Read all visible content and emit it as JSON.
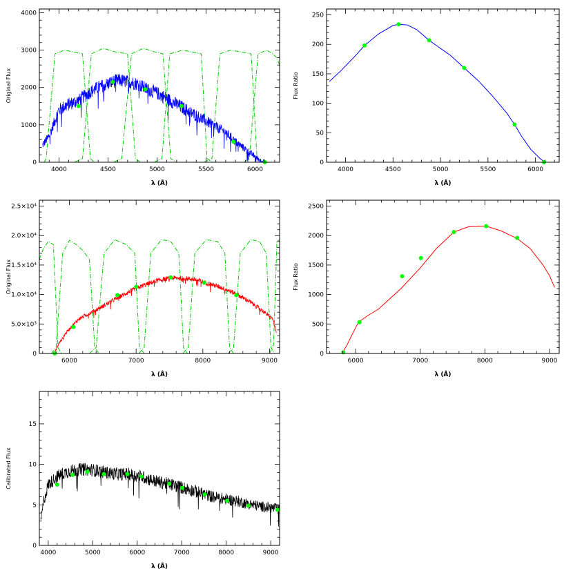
{
  "chart_data": [
    {
      "type": "line",
      "panel": "top-left",
      "xlabel": "λ (Å)",
      "ylabel": "Original Flux",
      "xlim": [
        3800,
        6250
      ],
      "ylim": [
        0,
        4100
      ],
      "xticks": [
        4000,
        4500,
        5000,
        5500,
        6000
      ],
      "yticks": [
        0,
        1000,
        2000,
        3000,
        4000
      ],
      "ytick_labels": [
        "0",
        "1000",
        "2000",
        "3000",
        "4000"
      ],
      "colors": {
        "spectrum": "#0000ff",
        "filters": "#00cc00",
        "points": "#00ff00"
      },
      "spectrum": {
        "x": [
          3830,
          3900,
          4000,
          4100,
          4200,
          4300,
          4400,
          4500,
          4600,
          4700,
          4800,
          4900,
          5000,
          5100,
          5200,
          5300,
          5400,
          5500,
          5600,
          5700,
          5800,
          5900,
          6000,
          6050,
          6100
        ],
        "y": [
          450,
          700,
          1400,
          1550,
          1650,
          1850,
          2000,
          2100,
          2200,
          2150,
          2100,
          1950,
          1850,
          1700,
          1550,
          1400,
          1250,
          1100,
          950,
          800,
          550,
          350,
          150,
          50,
          0
        ],
        "noise": 180
      },
      "filters": [
        {
          "x": [
            3850,
            3870,
            3960,
            4060,
            4150,
            4240,
            4320,
            4360
          ],
          "y": [
            0,
            100,
            2900,
            3000,
            2950,
            2900,
            100,
            0
          ]
        },
        {
          "x": [
            4160,
            4240,
            4330,
            4450,
            4580,
            4700,
            4780,
            4830
          ],
          "y": [
            0,
            100,
            2900,
            3050,
            2950,
            2900,
            100,
            0
          ]
        },
        {
          "x": [
            4560,
            4640,
            4740,
            4860,
            4980,
            5060,
            5140,
            5200
          ],
          "y": [
            0,
            100,
            2900,
            3050,
            2950,
            2900,
            100,
            0
          ]
        },
        {
          "x": [
            4970,
            5050,
            5130,
            5260,
            5360,
            5450,
            5510,
            5560
          ],
          "y": [
            0,
            100,
            2900,
            3000,
            2950,
            2900,
            100,
            0
          ]
        },
        {
          "x": [
            5480,
            5560,
            5640,
            5750,
            5860,
            5960,
            6020,
            6080
          ],
          "y": [
            0,
            100,
            2900,
            3000,
            2950,
            2900,
            100,
            0
          ]
        },
        {
          "x": [
            5890,
            5940,
            6030,
            6120,
            6180,
            6220,
            6250
          ],
          "y": [
            0,
            100,
            2900,
            3000,
            2900,
            2800,
            2600
          ]
        }
      ],
      "points": {
        "x": [
          4200,
          4550,
          4880,
          5250,
          5780,
          6100
        ],
        "y": [
          1500,
          2150,
          1950,
          1500,
          550,
          0
        ]
      }
    },
    {
      "type": "line",
      "panel": "top-right",
      "xlabel": "λ (Å)",
      "ylabel": "Flux Ratio",
      "xlim": [
        3800,
        6250
      ],
      "ylim": [
        0,
        260
      ],
      "xticks": [
        4000,
        4500,
        5000,
        5500,
        6000
      ],
      "yticks": [
        0,
        50,
        100,
        150,
        200,
        250
      ],
      "ytick_labels": [
        "0",
        "50",
        "100",
        "150",
        "200",
        "250"
      ],
      "colors": {
        "curve": "#0000ff",
        "points": "#00ff00"
      },
      "curve": {
        "x": [
          3830,
          3950,
          4100,
          4200,
          4350,
          4500,
          4560,
          4650,
          4750,
          4880,
          5000,
          5100,
          5250,
          5400,
          5550,
          5700,
          5780,
          5850,
          5950,
          6050,
          6100,
          6130
        ],
        "y": [
          137,
          155,
          180,
          198,
          218,
          232,
          234,
          233,
          225,
          207,
          193,
          182,
          160,
          138,
          112,
          83,
          64,
          45,
          22,
          6,
          0,
          0
        ]
      },
      "points": {
        "x": [
          4200,
          4560,
          4880,
          5250,
          5780,
          6090
        ],
        "y": [
          198,
          234,
          207,
          160,
          64,
          0
        ]
      }
    },
    {
      "type": "line",
      "panel": "middle-left",
      "xlabel": "λ (Å)",
      "ylabel": "Original Flux",
      "xlim": [
        5550,
        9150
      ],
      "ylim": [
        0,
        26000
      ],
      "xticks": [
        6000,
        7000,
        8000,
        9000
      ],
      "yticks": [
        0,
        5000,
        10000,
        15000,
        20000,
        25000
      ],
      "ytick_labels": [
        "0",
        "5.0×10³",
        "1.0×10⁴",
        "1.5×10⁴",
        "2.0×10⁴",
        "2.5×10⁴"
      ],
      "colors": {
        "spectrum": "#ff0000",
        "filters": "#00cc00",
        "points": "#00ff00"
      },
      "spectrum": {
        "x": [
          5770,
          5850,
          5950,
          6050,
          6150,
          6300,
          6500,
          6700,
          6900,
          7100,
          7300,
          7500,
          7700,
          7900,
          8100,
          8300,
          8500,
          8700,
          8900,
          9050,
          9100
        ],
        "y": [
          0,
          1800,
          3500,
          4800,
          5900,
          6800,
          8000,
          9300,
          10500,
          11500,
          12300,
          12800,
          12800,
          12500,
          11800,
          11100,
          10100,
          8800,
          7200,
          5800,
          3500
        ],
        "noise": 400
      },
      "filters": [
        {
          "x": [
            5550,
            5600,
            5680,
            5760,
            5830,
            5880
          ],
          "y": [
            16000,
            17500,
            19000,
            18500,
            1000,
            0
          ]
        },
        {
          "x": [
            5730,
            5800,
            5900,
            6000,
            6100,
            6200,
            6300,
            6380,
            6440
          ],
          "y": [
            0,
            1000,
            17000,
            19200,
            18500,
            17500,
            16000,
            1000,
            0
          ]
        },
        {
          "x": [
            6300,
            6400,
            6520,
            6680,
            6850,
            6980,
            7050,
            7120
          ],
          "y": [
            0,
            1000,
            17000,
            19300,
            18500,
            17000,
            1000,
            0
          ]
        },
        {
          "x": [
            7040,
            7120,
            7220,
            7380,
            7520,
            7640,
            7710,
            7770
          ],
          "y": [
            0,
            1000,
            17000,
            19300,
            19000,
            17000,
            1000,
            0
          ]
        },
        {
          "x": [
            7700,
            7780,
            7880,
            8050,
            8220,
            8330,
            8400,
            8460
          ],
          "y": [
            0,
            1000,
            17000,
            19300,
            19000,
            17000,
            1000,
            0
          ]
        },
        {
          "x": [
            8380,
            8460,
            8560,
            8720,
            8850,
            8950,
            9020,
            9080
          ],
          "y": [
            0,
            1000,
            17000,
            19300,
            19000,
            17000,
            1000,
            0
          ]
        },
        {
          "x": [
            9000,
            9060,
            9110,
            9150
          ],
          "y": [
            0,
            1500,
            19000,
            19300
          ]
        }
      ],
      "points": {
        "x": [
          5780,
          6060,
          6720,
          7000,
          7520,
          8020,
          8500
        ],
        "y": [
          0,
          4500,
          9900,
          11300,
          12900,
          12000,
          9900
        ]
      }
    },
    {
      "type": "line",
      "panel": "middle-right",
      "xlabel": "λ (Å)",
      "ylabel": "Flux Ratio",
      "xlim": [
        5550,
        9150
      ],
      "ylim": [
        0,
        2600
      ],
      "xticks": [
        6000,
        7000,
        8000,
        9000
      ],
      "yticks": [
        0,
        500,
        1000,
        1500,
        2000,
        2500
      ],
      "ytick_labels": [
        "0",
        "500",
        "1000",
        "1500",
        "2000",
        "2500"
      ],
      "colors": {
        "curve": "#ff0000",
        "points": "#00ff00"
      },
      "curve": {
        "x": [
          5800,
          5870,
          5950,
          6030,
          6080,
          6200,
          6350,
          6500,
          6700,
          7000,
          7250,
          7520,
          7750,
          8020,
          8250,
          8500,
          8700,
          8900,
          9000,
          9080
        ],
        "y": [
          20,
          150,
          330,
          500,
          560,
          650,
          750,
          900,
          1100,
          1450,
          1780,
          2060,
          2150,
          2160,
          2080,
          1950,
          1780,
          1500,
          1320,
          1120
        ]
      },
      "points": {
        "x": [
          5810,
          6060,
          6720,
          7010,
          7520,
          8020,
          8500
        ],
        "y": [
          20,
          530,
          1310,
          1620,
          2060,
          2160,
          1960
        ]
      }
    },
    {
      "type": "line",
      "panel": "bottom-left",
      "xlabel": "λ (Å)",
      "ylabel": "Calibrated Flux",
      "xlim": [
        3800,
        9200
      ],
      "ylim": [
        0,
        19
      ],
      "xticks": [
        4000,
        5000,
        6000,
        7000,
        8000,
        9000
      ],
      "yticks": [
        0,
        5,
        10,
        15
      ],
      "ytick_labels": [
        "0",
        "5",
        "10",
        "15"
      ],
      "colors": {
        "spectrum": "#000000",
        "points": "#00ff00"
      },
      "spectrum": {
        "x": [
          3830,
          3900,
          4000,
          4100,
          4200,
          4300,
          4400,
          4500,
          4600,
          4800,
          5000,
          5200,
          5400,
          5600,
          5800,
          5950,
          6100,
          6300,
          6500,
          6700,
          6900,
          7100,
          7300,
          7500,
          7700,
          7900,
          8100,
          8300,
          8500,
          8700,
          8900,
          9100,
          9200
        ],
        "y": [
          3,
          5.5,
          7.5,
          8,
          8.5,
          8.8,
          9,
          9.2,
          9.3,
          9.4,
          9.3,
          9.1,
          8.9,
          8.8,
          8.8,
          8.6,
          8.5,
          8.1,
          7.8,
          7.6,
          7.3,
          7.0,
          6.7,
          6.3,
          6.0,
          5.8,
          5.6,
          5.4,
          5.1,
          4.9,
          4.7,
          4.6,
          4.4
        ],
        "noise": 0.8
      },
      "points": {
        "x": [
          4200,
          4550,
          4880,
          5250,
          5780,
          6100,
          6720,
          7010,
          7520,
          8020,
          8500,
          9150
        ],
        "y": [
          7.5,
          8.7,
          9.1,
          8.8,
          8.8,
          8.5,
          7.6,
          7.1,
          6.3,
          5.5,
          4.9,
          4.4
        ]
      }
    }
  ]
}
